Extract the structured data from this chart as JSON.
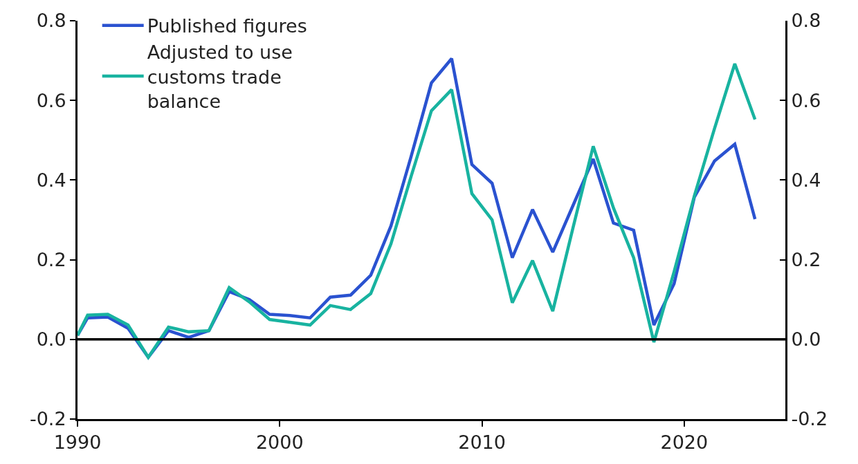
{
  "chart_data": {
    "type": "line",
    "x": [
      1990,
      1990.5,
      1991.5,
      1992.5,
      1993.5,
      1994.5,
      1995.5,
      1996.5,
      1997.5,
      1998.5,
      1999.5,
      2000.5,
      2001.5,
      2002.5,
      2003.5,
      2004.5,
      2005.5,
      2006.5,
      2007.5,
      2008.5,
      2009.5,
      2010.5,
      2011.5,
      2012.5,
      2013.5,
      2014.5,
      2015.5,
      2016.5,
      2017.5,
      2018.5,
      2019.5,
      2020.5,
      2021.5,
      2022.5,
      2023.5
    ],
    "series": [
      {
        "name": "Published figures",
        "color": "#2a52d0",
        "values": [
          0.01,
          0.054,
          0.056,
          0.028,
          -0.045,
          0.022,
          0.005,
          0.022,
          0.12,
          0.1,
          0.063,
          0.06,
          0.054,
          0.106,
          0.111,
          0.161,
          0.285,
          0.46,
          0.644,
          0.705,
          0.439,
          0.392,
          0.205,
          0.326,
          0.219,
          0.336,
          0.453,
          0.292,
          0.274,
          0.036,
          0.14,
          0.357,
          0.448,
          0.49,
          0.302
        ]
      },
      {
        "name": "Adjusted to use customs trade balance",
        "color": "#18b3a0",
        "values": [
          0.01,
          0.061,
          0.063,
          0.036,
          -0.045,
          0.031,
          0.019,
          0.022,
          0.13,
          0.094,
          0.05,
          0.043,
          0.036,
          0.085,
          0.075,
          0.115,
          0.24,
          0.41,
          0.574,
          0.627,
          0.366,
          0.3,
          0.092,
          0.198,
          0.071,
          0.28,
          0.485,
          0.33,
          0.205,
          -0.007,
          0.17,
          0.36,
          0.53,
          0.692,
          0.552
        ]
      }
    ],
    "xlim": [
      1990,
      2025
    ],
    "xticks": [
      1990,
      2000,
      2010,
      2020
    ],
    "ylim": [
      -0.2,
      0.8
    ],
    "yticks": [
      {
        "value": -0.2,
        "label": "-0.2"
      },
      {
        "value": 0,
        "label": "0.0"
      },
      0.2,
      0.4,
      0.6,
      0.8
    ],
    "y2lim": [
      -0.2,
      0.8
    ],
    "y2ticks": [
      {
        "value": -0.2,
        "label": "-0.2"
      },
      {
        "value": 0,
        "label": "0.0"
      },
      0.2,
      0.4,
      0.6,
      0.8
    ],
    "ref_lines": [
      {
        "axis": "y",
        "value": 0,
        "color": "#000000"
      }
    ],
    "grid": false,
    "legend": "top left",
    "marker": "none",
    "line_style": "solid"
  }
}
